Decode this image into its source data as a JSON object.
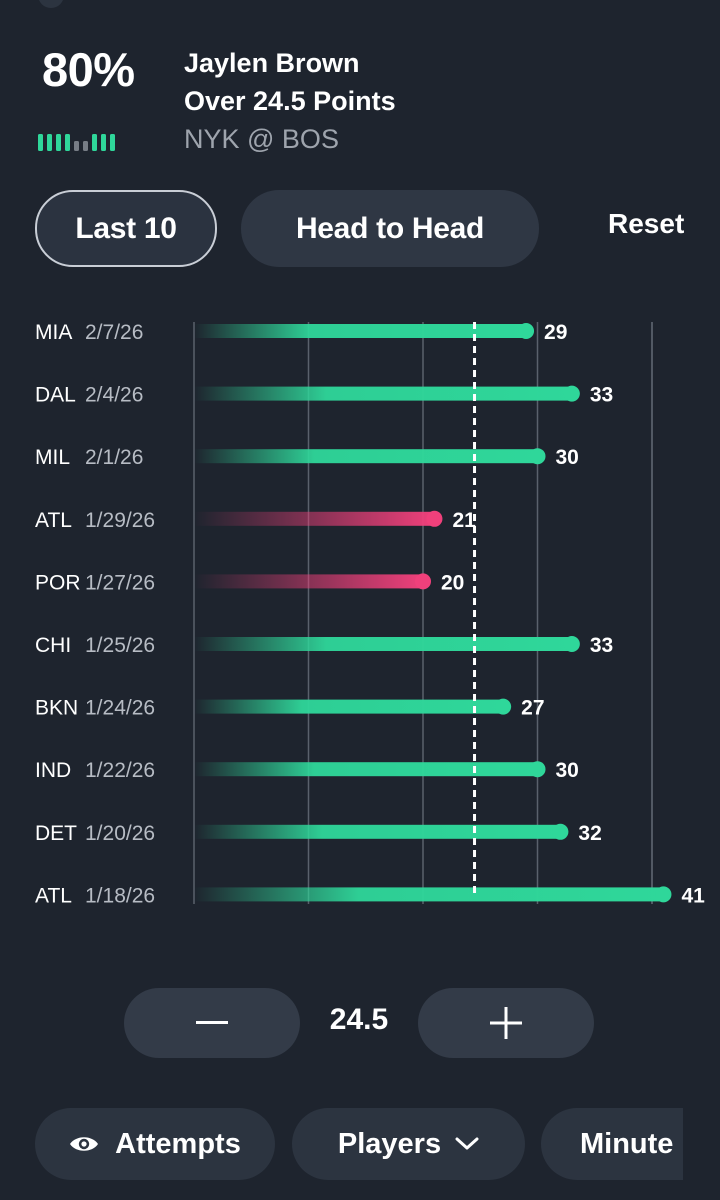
{
  "header": {
    "probability": "80%",
    "player_name": "Jaylen Brown",
    "prop_line": "Over 24.5 Points",
    "matchup": "NYK @ BOS",
    "strength_bars": [
      1,
      1,
      1,
      1,
      0,
      0,
      1,
      1,
      1
    ]
  },
  "tabs": [
    {
      "label": "Last 10",
      "selected": true
    },
    {
      "label": "Head to Head",
      "selected": false
    }
  ],
  "reset_label": "Reset",
  "colors": {
    "hit": "#2fd79a",
    "miss": "#f0407b",
    "background": "#1e242e"
  },
  "chart_data": {
    "type": "bar",
    "orientation": "horizontal",
    "title": "",
    "threshold": 24.5,
    "xlim": [
      0,
      50
    ],
    "gridlines_at": [
      0,
      10,
      20,
      30,
      40
    ],
    "categories": [
      "MIA",
      "DAL",
      "MIL",
      "ATL",
      "POR",
      "CHI",
      "BKN",
      "IND",
      "DET",
      "ATL"
    ],
    "dates": [
      "2/7/26",
      "2/4/26",
      "2/1/26",
      "1/29/26",
      "1/27/26",
      "1/25/26",
      "1/24/26",
      "1/22/26",
      "1/20/26",
      "1/18/26"
    ],
    "values": [
      29,
      33,
      30,
      21,
      20,
      33,
      27,
      30,
      32,
      41
    ],
    "status": [
      "over",
      "over",
      "over",
      "under",
      "under",
      "over",
      "over",
      "over",
      "over",
      "over"
    ]
  },
  "controls": {
    "line_value": "24.5",
    "minus_label": "−",
    "plus_label": "+"
  },
  "filters": [
    {
      "label": "Attempts",
      "icon": "eye-icon"
    },
    {
      "label": "Players",
      "icon": "chevron-down-icon"
    },
    {
      "label": "Minute"
    }
  ]
}
